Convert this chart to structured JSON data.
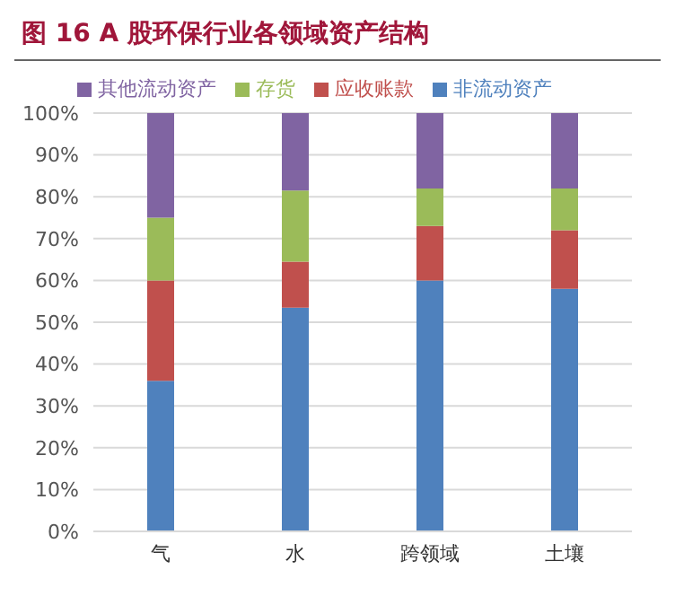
{
  "chart_data": {
    "type": "bar",
    "title": "图 16 A 股环保行业各领域资产结构",
    "stacked": true,
    "categories": [
      "气",
      "水",
      "跨领域",
      "土壤"
    ],
    "series": [
      {
        "name": "非流动资产",
        "color": "#4f81bd",
        "values": [
          36,
          53.5,
          60,
          58
        ]
      },
      {
        "name": "应收账款",
        "color": "#c0504d",
        "values": [
          24,
          11,
          13,
          14
        ]
      },
      {
        "name": "存货",
        "color": "#9bbb59",
        "values": [
          15,
          17,
          9,
          10
        ]
      },
      {
        "name": "其他流动资产",
        "color": "#8064a2",
        "values": [
          25,
          18.5,
          18,
          18
        ]
      }
    ],
    "ylim": [
      0,
      100
    ],
    "yticks": [
      {
        "value": 0,
        "label": "0%"
      },
      {
        "value": 10,
        "label": "10%"
      },
      {
        "value": 20,
        "label": "20%"
      },
      {
        "value": 30,
        "label": "30%"
      },
      {
        "value": 40,
        "label": "40%"
      },
      {
        "value": 50,
        "label": "50%"
      },
      {
        "value": 60,
        "label": "60%"
      },
      {
        "value": 70,
        "label": "70%"
      },
      {
        "value": 80,
        "label": "80%"
      },
      {
        "value": 90,
        "label": "90%"
      },
      {
        "value": 100,
        "label": "100%"
      }
    ],
    "grid": "y",
    "legend": "top"
  }
}
